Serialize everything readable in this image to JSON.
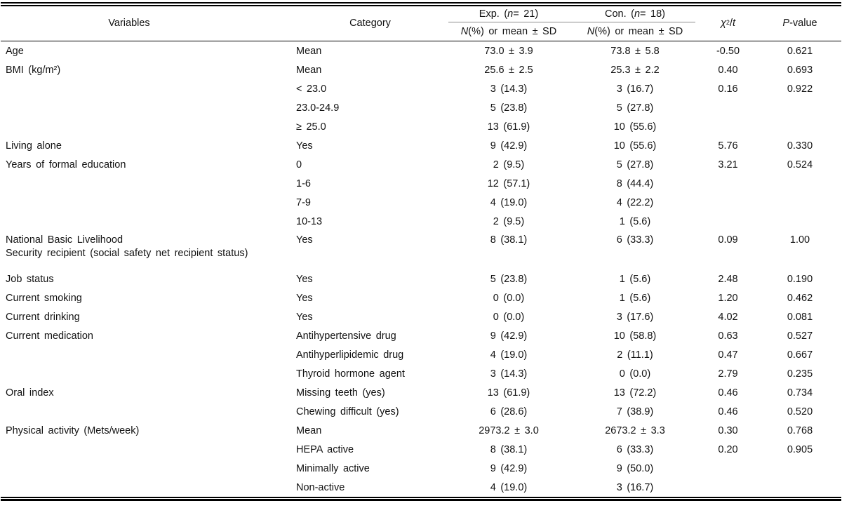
{
  "colors": {
    "rule": "#000000",
    "spanner_rule": "#8c8c8c",
    "text": "#121212",
    "background": "#ffffff"
  },
  "table": {
    "header": {
      "variables": "Variables",
      "category": "Category",
      "exp": {
        "prefix": "Exp. (",
        "n": "n",
        "suffix": " = 21)"
      },
      "con": {
        "prefix": "Con. (",
        "n": "n",
        "suffix": " = 18)"
      },
      "subheader": {
        "n": "N",
        "rest": " (%) or mean ± SD"
      },
      "chi": {
        "symbol": "χ",
        "sup": "2",
        "slash": "/",
        "t": "t"
      },
      "pvalue": {
        "p": "P",
        "rest": "-value"
      }
    },
    "rows": [
      {
        "variable": "Age",
        "variable2": "",
        "category": "Mean",
        "exp": "73.0 ± 3.9",
        "con": "73.8 ± 5.8",
        "chi": "-0.50",
        "p": "0.621"
      },
      {
        "variable": "BMI (kg/m²)",
        "variable2": "",
        "category": "Mean",
        "exp": "25.6 ± 2.5",
        "con": "25.3 ± 2.2",
        "chi": "0.40",
        "p": "0.693"
      },
      {
        "variable": "",
        "variable2": "",
        "category": "< 23.0",
        "exp": "3 (14.3)",
        "con": "3 (16.7)",
        "chi": "0.16",
        "p": "0.922"
      },
      {
        "variable": "",
        "variable2": "",
        "category": "23.0-24.9",
        "exp": "5 (23.8)",
        "con": "5 (27.8)",
        "chi": "",
        "p": ""
      },
      {
        "variable": "",
        "variable2": "",
        "category": "≥ 25.0",
        "exp": "13 (61.9)",
        "con": "10 (55.6)",
        "chi": "",
        "p": ""
      },
      {
        "variable": "Living alone",
        "variable2": "",
        "category": "Yes",
        "exp": "9 (42.9)",
        "con": "10 (55.6)",
        "chi": "5.76",
        "p": "0.330"
      },
      {
        "variable": "Years of formal education",
        "variable2": "",
        "category": "0",
        "exp": "2 (9.5)",
        "con": "5 (27.8)",
        "chi": "3.21",
        "p": "0.524"
      },
      {
        "variable": "",
        "variable2": "",
        "category": "1-6",
        "exp": "12 (57.1)",
        "con": "8 (44.4)",
        "chi": "",
        "p": ""
      },
      {
        "variable": "",
        "variable2": "",
        "category": "7-9",
        "exp": "4 (19.0)",
        "con": "4 (22.2)",
        "chi": "",
        "p": ""
      },
      {
        "variable": "",
        "variable2": "",
        "category": "10-13",
        "exp": "2 (9.5)",
        "con": "1 (5.6)",
        "chi": "",
        "p": ""
      },
      {
        "variable": "National Basic Livelihood",
        "variable2": "Security recipient (social safety net recipient status)",
        "category": "Yes",
        "exp": "8 (38.1)",
        "con": "6 (33.3)",
        "chi": "0.09",
        "p": "1.00"
      },
      {
        "variable": "Job status",
        "variable2": "",
        "category": "Yes",
        "exp": "5 (23.8)",
        "con": "1 (5.6)",
        "chi": "2.48",
        "p": "0.190"
      },
      {
        "variable": "Current smoking",
        "variable2": "",
        "category": "Yes",
        "exp": "0 (0.0)",
        "con": "1 (5.6)",
        "chi": "1.20",
        "p": "0.462"
      },
      {
        "variable": "Current drinking",
        "variable2": "",
        "category": "Yes",
        "exp": "0 (0.0)",
        "con": "3 (17.6)",
        "chi": "4.02",
        "p": "0.081"
      },
      {
        "variable": "Current medication",
        "variable2": "",
        "category": "Antihypertensive drug",
        "exp": "9 (42.9)",
        "con": "10 (58.8)",
        "chi": "0.63",
        "p": "0.527"
      },
      {
        "variable": "",
        "variable2": "",
        "category": "Antihyperlipidemic drug",
        "exp": "4 (19.0)",
        "con": "2 (11.1)",
        "chi": "0.47",
        "p": "0.667"
      },
      {
        "variable": "",
        "variable2": "",
        "category": "Thyroid hormone agent",
        "exp": "3 (14.3)",
        "con": "0 (0.0)",
        "chi": "2.79",
        "p": "0.235"
      },
      {
        "variable": "Oral index",
        "variable2": "",
        "category": "Missing teeth (yes)",
        "exp": "13 (61.9)",
        "con": "13 (72.2)",
        "chi": "0.46",
        "p": "0.734"
      },
      {
        "variable": "",
        "variable2": "",
        "category": "Chewing difficult (yes)",
        "exp": "6 (28.6)",
        "con": "7 (38.9)",
        "chi": "0.46",
        "p": "0.520"
      },
      {
        "variable": "Physical activity (Mets/week)",
        "variable2": "",
        "category": "Mean",
        "exp": "2973.2 ± 3.0",
        "con": "2673.2 ± 3.3",
        "chi": "0.30",
        "p": "0.768"
      },
      {
        "variable": "",
        "variable2": "",
        "category": "HEPA active",
        "exp": "8 (38.1)",
        "con": "6 (33.3)",
        "chi": "0.20",
        "p": "0.905"
      },
      {
        "variable": "",
        "variable2": "",
        "category": "Minimally active",
        "exp": "9 (42.9)",
        "con": "9 (50.0)",
        "chi": "",
        "p": ""
      },
      {
        "variable": "",
        "variable2": "",
        "category": "Non-active",
        "exp": "4 (19.0)",
        "con": "3 (16.7)",
        "chi": "",
        "p": ""
      }
    ]
  }
}
